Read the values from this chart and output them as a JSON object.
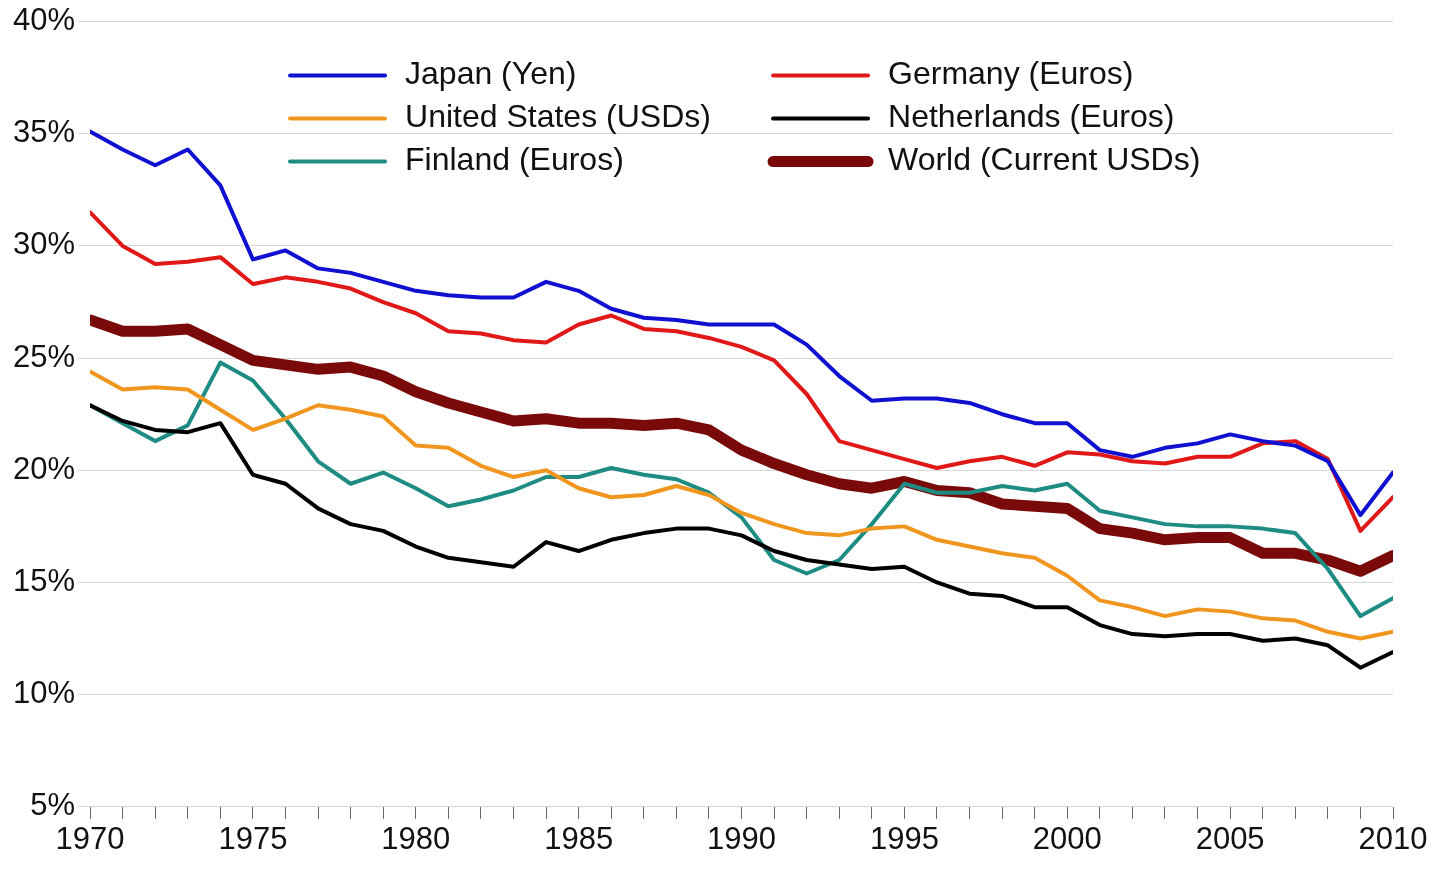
{
  "chart_data": {
    "type": "line",
    "x": [
      1970,
      1971,
      1972,
      1973,
      1974,
      1975,
      1976,
      1977,
      1978,
      1979,
      1980,
      1981,
      1982,
      1983,
      1984,
      1985,
      1986,
      1987,
      1988,
      1989,
      1990,
      1991,
      1992,
      1993,
      1994,
      1995,
      1996,
      1997,
      1998,
      1999,
      2000,
      2001,
      2002,
      2003,
      2004,
      2005,
      2006,
      2007,
      2008,
      2009,
      2010
    ],
    "series": [
      {
        "name": "Japan (Yen)",
        "color": "#1010d0",
        "values": [
          35.1,
          34.3,
          33.6,
          34.3,
          32.7,
          29.4,
          29.8,
          29.0,
          28.8,
          28.4,
          28.0,
          27.8,
          27.7,
          27.7,
          28.4,
          28.0,
          27.2,
          26.8,
          26.7,
          26.5,
          26.5,
          26.5,
          25.6,
          24.2,
          23.1,
          23.2,
          23.2,
          23.0,
          22.5,
          22.1,
          22.1,
          20.9,
          20.6,
          21.0,
          21.2,
          21.6,
          21.3,
          21.1,
          20.4,
          18.0,
          19.9
        ]
      },
      {
        "name": "Germany (Euros)",
        "color": "#e01818",
        "values": [
          31.5,
          30.0,
          29.2,
          29.3,
          29.5,
          28.3,
          28.6,
          28.4,
          28.1,
          27.5,
          27.0,
          26.2,
          26.1,
          25.8,
          25.7,
          26.5,
          26.9,
          26.3,
          26.2,
          25.9,
          25.5,
          24.9,
          23.4,
          21.3,
          20.9,
          20.5,
          20.1,
          20.4,
          20.6,
          20.2,
          20.8,
          20.7,
          20.4,
          20.3,
          20.6,
          20.6,
          21.2,
          21.3,
          20.5,
          17.3,
          18.8
        ]
      },
      {
        "name": "United States (USDs)",
        "color": "#f0961e",
        "values": [
          24.4,
          23.6,
          23.7,
          23.6,
          22.7,
          21.8,
          22.3,
          22.9,
          22.7,
          22.4,
          21.1,
          21.0,
          20.2,
          19.7,
          20.0,
          19.2,
          18.8,
          18.9,
          19.3,
          18.9,
          18.1,
          17.6,
          17.2,
          17.1,
          17.4,
          17.5,
          16.9,
          16.6,
          16.3,
          16.1,
          15.3,
          14.2,
          13.9,
          13.5,
          13.8,
          13.7,
          13.4,
          13.3,
          12.8,
          12.5,
          12.8
        ]
      },
      {
        "name": "Netherlands (Euros)",
        "color": "#000000",
        "values": [
          22.9,
          22.2,
          21.8,
          21.7,
          22.1,
          19.8,
          19.4,
          18.3,
          17.6,
          17.3,
          16.6,
          16.1,
          15.9,
          15.7,
          16.8,
          16.4,
          16.9,
          17.2,
          17.4,
          17.4,
          17.1,
          16.4,
          16.0,
          15.8,
          15.6,
          15.7,
          15.0,
          14.5,
          14.4,
          13.9,
          13.9,
          13.1,
          12.7,
          12.6,
          12.7,
          12.7,
          12.4,
          12.5,
          12.2,
          11.2,
          11.9
        ]
      },
      {
        "name": "Finland (Euros)",
        "color": "#1e8c82",
        "values": [
          22.9,
          22.1,
          21.3,
          22.0,
          24.8,
          24.0,
          22.3,
          20.4,
          19.4,
          19.9,
          19.2,
          18.4,
          18.7,
          19.1,
          19.7,
          19.7,
          20.1,
          19.8,
          19.6,
          19.0,
          17.9,
          16.0,
          15.4,
          16.0,
          17.6,
          19.4,
          19.0,
          19.0,
          19.3,
          19.1,
          19.4,
          18.2,
          17.9,
          17.6,
          17.5,
          17.5,
          17.4,
          17.2,
          15.6,
          13.5,
          14.3
        ]
      },
      {
        "name": "World (Current USDs)",
        "color": "#7a0a0a",
        "values": [
          26.7,
          26.2,
          26.2,
          26.3,
          25.6,
          24.9,
          24.7,
          24.5,
          24.6,
          24.2,
          23.5,
          23.0,
          22.6,
          22.2,
          22.3,
          22.1,
          22.1,
          22.0,
          22.1,
          21.8,
          20.9,
          20.3,
          19.8,
          19.4,
          19.2,
          19.5,
          19.1,
          19.0,
          18.5,
          18.4,
          18.3,
          17.4,
          17.2,
          16.9,
          17.0,
          17.0,
          16.3,
          16.3,
          16.0,
          15.5,
          16.2
        ]
      }
    ],
    "xlim": [
      1970,
      2010
    ],
    "xticks": [
      1970,
      {
        "value": 1971,
        "label": null
      },
      {
        "value": 1972,
        "label": null
      },
      {
        "value": 1973,
        "label": null
      },
      {
        "value": 1974,
        "label": null
      },
      1975,
      {
        "value": 1976,
        "label": null
      },
      {
        "value": 1977,
        "label": null
      },
      {
        "value": 1978,
        "label": null
      },
      {
        "value": 1979,
        "label": null
      },
      1980,
      {
        "value": 1981,
        "label": null
      },
      {
        "value": 1982,
        "label": null
      },
      {
        "value": 1983,
        "label": null
      },
      {
        "value": 1984,
        "label": null
      },
      1985,
      {
        "value": 1986,
        "label": null
      },
      {
        "value": 1987,
        "label": null
      },
      {
        "value": 1988,
        "label": null
      },
      {
        "value": 1989,
        "label": null
      },
      1990,
      {
        "value": 1991,
        "label": null
      },
      {
        "value": 1992,
        "label": null
      },
      {
        "value": 1993,
        "label": null
      },
      {
        "value": 1994,
        "label": null
      },
      1995,
      {
        "value": 1996,
        "label": null
      },
      {
        "value": 1997,
        "label": null
      },
      {
        "value": 1998,
        "label": null
      },
      {
        "value": 1999,
        "label": null
      },
      2000,
      {
        "value": 2001,
        "label": null
      },
      {
        "value": 2002,
        "label": null
      },
      {
        "value": 2003,
        "label": null
      },
      {
        "value": 2004,
        "label": null
      },
      2005,
      {
        "value": 2006,
        "label": null
      },
      {
        "value": 2007,
        "label": null
      },
      {
        "value": 2008,
        "label": null
      },
      {
        "value": 2009,
        "label": null
      },
      2010
    ],
    "ylim": [
      5,
      40
    ],
    "yticks": [
      {
        "value": 5,
        "label": "5%"
      },
      {
        "value": 10,
        "label": "10%"
      },
      {
        "value": 15,
        "label": "15%"
      },
      {
        "value": 20,
        "label": "20%"
      },
      {
        "value": 25,
        "label": "25%"
      },
      {
        "value": 30,
        "label": "30%"
      },
      {
        "value": 35,
        "label": "35%"
      },
      {
        "value": 40,
        "label": "40%"
      }
    ],
    "grid": "y",
    "legend": "top",
    "marker": "none",
    "line_style": "solid"
  }
}
